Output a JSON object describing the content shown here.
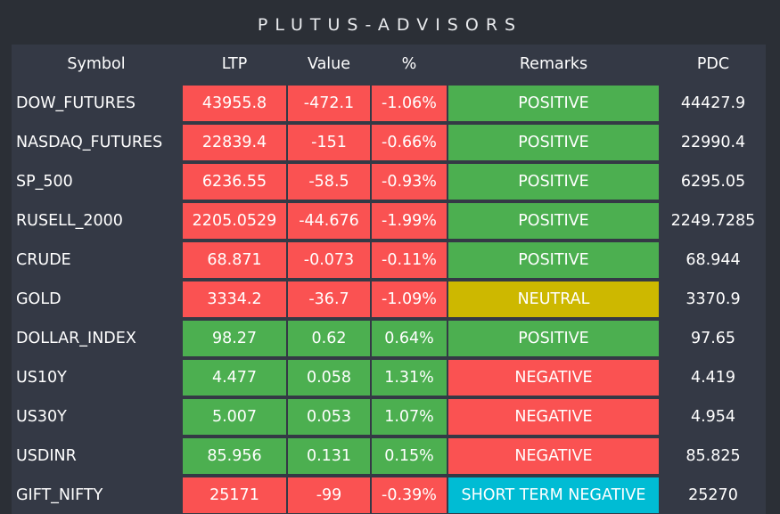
{
  "title": "PLUTUS-ADVISORS",
  "headers": [
    "Symbol",
    "LTP",
    "Value",
    "%",
    "Remarks",
    "PDC"
  ],
  "colors": {
    "background": "#2b2f36",
    "panel": "#343945",
    "negative": "#fa5252",
    "positive": "#4caf50",
    "neutral": "#cdb800",
    "short_term": "#00bcd4"
  },
  "rows": [
    {
      "symbol": "DOW_FUTURES",
      "ltp": "43955.8",
      "value": "-472.1",
      "pct": "-1.06%",
      "remarks": "POSITIVE",
      "pdc": "44427.9",
      "change_color": "red",
      "remark_color": "green"
    },
    {
      "symbol": "NASDAQ_FUTURES",
      "ltp": "22839.4",
      "value": "-151",
      "pct": "-0.66%",
      "remarks": "POSITIVE",
      "pdc": "22990.4",
      "change_color": "red",
      "remark_color": "green"
    },
    {
      "symbol": "SP_500",
      "ltp": "6236.55",
      "value": "-58.5",
      "pct": "-0.93%",
      "remarks": "POSITIVE",
      "pdc": "6295.05",
      "change_color": "red",
      "remark_color": "green"
    },
    {
      "symbol": "RUSELL_2000",
      "ltp": "2205.0529",
      "value": "-44.676",
      "pct": "-1.99%",
      "remarks": "POSITIVE",
      "pdc": "2249.7285",
      "change_color": "red",
      "remark_color": "green"
    },
    {
      "symbol": "CRUDE",
      "ltp": "68.871",
      "value": "-0.073",
      "pct": "-0.11%",
      "remarks": "POSITIVE",
      "pdc": "68.944",
      "change_color": "red",
      "remark_color": "green"
    },
    {
      "symbol": "GOLD",
      "ltp": "3334.2",
      "value": "-36.7",
      "pct": "-1.09%",
      "remarks": "NEUTRAL",
      "pdc": "3370.9",
      "change_color": "red",
      "remark_color": "yellow"
    },
    {
      "symbol": "DOLLAR_INDEX",
      "ltp": "98.27",
      "value": "0.62",
      "pct": "0.64%",
      "remarks": "POSITIVE",
      "pdc": "97.65",
      "change_color": "green",
      "remark_color": "green"
    },
    {
      "symbol": "US10Y",
      "ltp": "4.477",
      "value": "0.058",
      "pct": "1.31%",
      "remarks": "NEGATIVE",
      "pdc": "4.419",
      "change_color": "green",
      "remark_color": "red"
    },
    {
      "symbol": "US30Y",
      "ltp": "5.007",
      "value": "0.053",
      "pct": "1.07%",
      "remarks": "NEGATIVE",
      "pdc": "4.954",
      "change_color": "green",
      "remark_color": "red"
    },
    {
      "symbol": "USDINR",
      "ltp": "85.956",
      "value": "0.131",
      "pct": "0.15%",
      "remarks": "NEGATIVE",
      "pdc": "85.825",
      "change_color": "green",
      "remark_color": "red"
    },
    {
      "symbol": "GIFT_NIFTY",
      "ltp": "25171",
      "value": "-99",
      "pct": "-0.39%",
      "remarks": "SHORT TERM NEGATIVE",
      "pdc": "25270",
      "change_color": "red",
      "remark_color": "cyan"
    }
  ]
}
